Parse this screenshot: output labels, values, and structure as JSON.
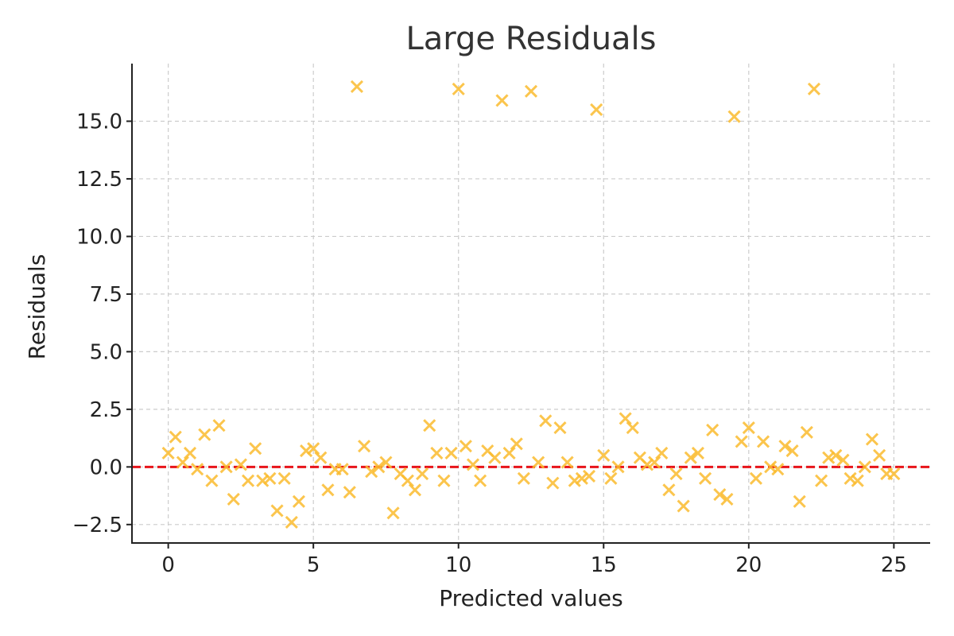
{
  "chart_data": {
    "type": "scatter",
    "title": "Large Residuals",
    "xlabel": "Predicted values",
    "ylabel": "Residuals",
    "xlim": [
      -1.25,
      26.25
    ],
    "ylim": [
      -3.3,
      17.5
    ],
    "xticks": [
      0,
      5,
      10,
      15,
      20,
      25
    ],
    "yticks": [
      -2.5,
      0.0,
      2.5,
      5.0,
      7.5,
      10.0,
      12.5,
      15.0
    ],
    "xtick_labels": [
      "0",
      "5",
      "10",
      "15",
      "20",
      "25"
    ],
    "ytick_labels": [
      "−2.5",
      "0.0",
      "2.5",
      "5.0",
      "7.5",
      "10.0",
      "12.5",
      "15.0"
    ],
    "grid": true,
    "marker": "x",
    "point_color": "#FBBC2E",
    "reference_line": {
      "y": 0,
      "style": "dashed",
      "color": "#E8141A"
    },
    "series": [
      {
        "x": [
          0.0,
          0.25,
          0.5,
          0.75,
          1.0,
          1.25,
          1.5,
          1.75,
          2.0,
          2.25,
          2.5,
          2.75,
          3.0,
          3.25,
          3.5,
          3.75,
          4.0,
          4.25,
          4.5,
          4.75,
          5.0,
          5.25,
          5.5,
          5.75,
          6.0,
          6.25,
          6.5,
          6.75,
          7.0,
          7.25,
          7.5,
          7.75,
          8.0,
          8.25,
          8.5,
          8.75,
          9.0,
          9.25,
          9.5,
          9.75,
          10.0,
          10.25,
          10.5,
          10.75,
          11.0,
          11.25,
          11.5,
          11.75,
          12.0,
          12.25,
          12.5,
          12.75,
          13.0,
          13.25,
          13.5,
          13.75,
          14.0,
          14.25,
          14.5,
          14.75,
          15.0,
          15.25,
          15.5,
          15.75,
          16.0,
          16.25,
          16.5,
          16.75,
          17.0,
          17.25,
          17.5,
          17.75,
          18.0,
          18.25,
          18.5,
          18.75,
          19.0,
          19.25,
          19.5,
          19.75,
          20.0,
          20.25,
          20.5,
          20.75,
          21.0,
          21.25,
          21.5,
          21.75,
          22.0,
          22.25,
          22.5,
          22.75,
          23.0,
          23.25,
          23.5,
          23.75,
          24.0,
          24.25,
          24.5,
          24.75,
          25.0
        ],
        "y": [
          0.6,
          1.3,
          0.2,
          0.6,
          -0.1,
          1.4,
          -0.6,
          1.8,
          0.0,
          -1.4,
          0.1,
          -0.6,
          0.8,
          -0.6,
          -0.5,
          -1.9,
          -0.5,
          -2.4,
          -1.5,
          0.7,
          0.8,
          0.4,
          -1.0,
          -0.1,
          -0.1,
          -1.1,
          16.5,
          0.9,
          -0.2,
          0.0,
          0.2,
          -2.0,
          -0.3,
          -0.6,
          -1.0,
          -0.3,
          1.8,
          0.6,
          -0.6,
          0.6,
          16.4,
          0.9,
          0.1,
          -0.6,
          0.7,
          0.4,
          15.9,
          0.6,
          1.0,
          -0.5,
          16.3,
          0.2,
          2.0,
          -0.7,
          1.7,
          0.2,
          -0.6,
          -0.5,
          -0.4,
          15.5,
          0.5,
          -0.5,
          0.0,
          2.1,
          1.7,
          0.4,
          0.1,
          0.2,
          0.6,
          -1.0,
          -0.3,
          -1.7,
          0.4,
          0.6,
          -0.5,
          1.6,
          -1.2,
          -1.4,
          15.2,
          1.1,
          1.7,
          -0.5,
          1.1,
          0.0,
          -0.1,
          0.9,
          0.7,
          -1.5,
          1.5,
          16.4,
          -0.6,
          0.4,
          0.5,
          0.3,
          -0.5,
          -0.6,
          0.0,
          1.2,
          0.5,
          -0.3,
          -0.3
        ]
      }
    ]
  }
}
